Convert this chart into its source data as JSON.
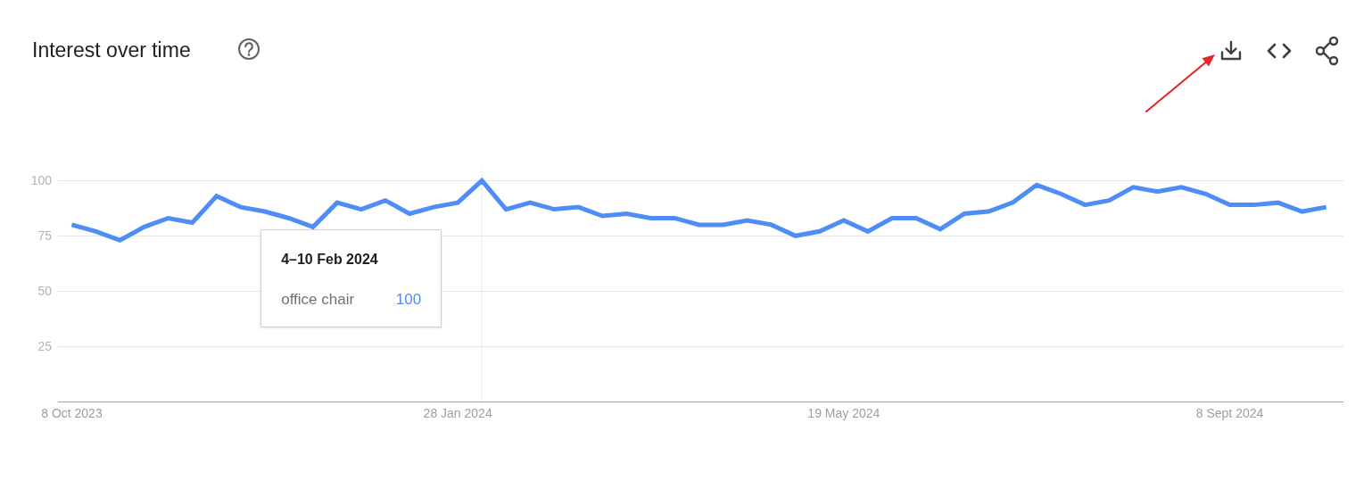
{
  "chart_data": {
    "type": "line",
    "title": "Interest over time",
    "x": [
      "2023-10-08",
      "2023-10-15",
      "2023-10-22",
      "2023-10-29",
      "2023-11-05",
      "2023-11-12",
      "2023-11-19",
      "2023-11-26",
      "2023-12-03",
      "2023-12-10",
      "2023-12-17",
      "2023-12-24",
      "2023-12-31",
      "2024-01-07",
      "2024-01-14",
      "2024-01-21",
      "2024-01-28",
      "2024-02-04",
      "2024-02-11",
      "2024-02-18",
      "2024-02-25",
      "2024-03-03",
      "2024-03-10",
      "2024-03-17",
      "2024-03-24",
      "2024-03-31",
      "2024-04-07",
      "2024-04-14",
      "2024-04-21",
      "2024-04-28",
      "2024-05-05",
      "2024-05-12",
      "2024-05-19",
      "2024-05-26",
      "2024-06-02",
      "2024-06-09",
      "2024-06-16",
      "2024-06-23",
      "2024-06-30",
      "2024-07-07",
      "2024-07-14",
      "2024-07-21",
      "2024-07-28",
      "2024-08-04",
      "2024-08-11",
      "2024-08-18",
      "2024-08-25",
      "2024-09-01",
      "2024-09-08",
      "2024-09-15",
      "2024-09-22",
      "2024-09-29",
      "2024-10-06"
    ],
    "series": [
      {
        "name": "office chair",
        "color": "#4e8df5",
        "values": [
          80,
          77,
          73,
          79,
          83,
          81,
          93,
          88,
          86,
          83,
          79,
          90,
          87,
          91,
          85,
          88,
          90,
          100,
          87,
          90,
          87,
          88,
          84,
          85,
          83,
          83,
          80,
          80,
          82,
          80,
          75,
          77,
          82,
          77,
          83,
          83,
          78,
          85,
          86,
          90,
          98,
          94,
          89,
          91,
          97,
          95,
          97,
          94,
          89,
          89,
          90,
          86,
          88
        ]
      }
    ],
    "xlim": [
      "2023-10-04",
      "2024-10-11"
    ],
    "xticks": [
      {
        "value": "2023-10-08",
        "label": "8 Oct 2023"
      },
      {
        "value": "2024-01-28",
        "label": "28 Jan 2024"
      },
      {
        "value": "2024-05-19",
        "label": "19 May 2024"
      },
      {
        "value": "2024-09-08",
        "label": "8 Sept 2024"
      }
    ],
    "ylim": [
      0,
      105
    ],
    "yticks": [
      25,
      50,
      75,
      100
    ],
    "grid": "y",
    "marker": "none",
    "line_style": "solid",
    "annotations": [
      "4–10 Feb 2024",
      "100"
    ],
    "ref_lines": [
      {
        "axis": "x",
        "value": "2024-02-04",
        "color": "#ececec"
      }
    ]
  }
}
